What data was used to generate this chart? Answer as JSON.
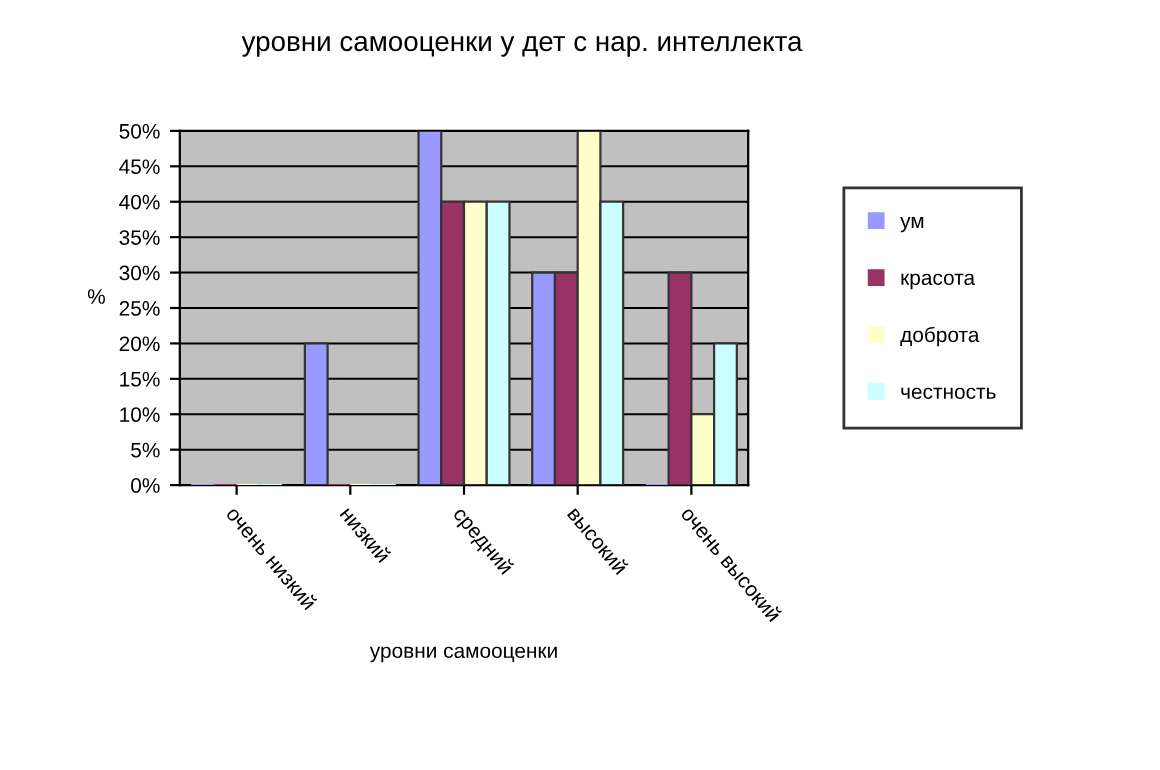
{
  "chart_data": {
    "type": "bar",
    "title": "уровни самооценки у дет с нар. интеллекта",
    "xlabel": "уровни самооценки",
    "ylabel": "%",
    "categories": [
      "очень низкий",
      "низкий",
      "средний",
      "высокий",
      "очень высокий"
    ],
    "series": [
      {
        "name": "ум",
        "color": "#9999ff",
        "values": [
          0,
          20,
          50,
          30,
          0
        ]
      },
      {
        "name": "красота",
        "color": "#993366",
        "values": [
          0,
          0,
          40,
          30,
          30
        ]
      },
      {
        "name": "доброта",
        "color": "#ffffcc",
        "values": [
          0,
          0,
          40,
          50,
          10
        ]
      },
      {
        "name": "честность",
        "color": "#ccffff",
        "values": [
          0,
          0,
          40,
          40,
          20
        ]
      }
    ],
    "ylim": [
      0,
      50
    ],
    "yticks": [
      {
        "value": 0,
        "label": "0%"
      },
      {
        "value": 5,
        "label": "5%"
      },
      {
        "value": 10,
        "label": "10%"
      },
      {
        "value": 15,
        "label": "15%"
      },
      {
        "value": 20,
        "label": "20%"
      },
      {
        "value": 25,
        "label": "25%"
      },
      {
        "value": 30,
        "label": "30%"
      },
      {
        "value": 35,
        "label": "35%"
      },
      {
        "value": 40,
        "label": "40%"
      },
      {
        "value": 45,
        "label": "45%"
      },
      {
        "value": 50,
        "label": "50%"
      }
    ],
    "grid": "y",
    "legend": "right"
  }
}
